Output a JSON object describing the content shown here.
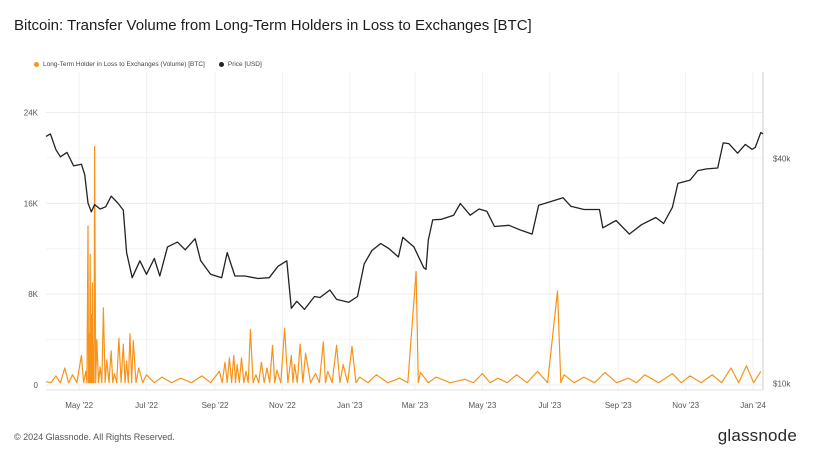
{
  "title": "Bitcoin: Transfer Volume from Long-Term Holders in Loss to Exchanges [BTC]",
  "legend": [
    {
      "label": "Long-Term Holder in Loss to Exchanges (Volume) [BTC]",
      "color": "#f7931a"
    },
    {
      "label": "Price [USD]",
      "color": "#222222"
    }
  ],
  "footer": {
    "copyright": "© 2024 Glassnode. All Rights Reserved.",
    "brand": "glassnode"
  },
  "chart_data": {
    "type": "line",
    "x_range": [
      "2022-04-01",
      "2024-01-10"
    ],
    "x_ticks": [
      {
        "date": "2022-05-01",
        "label": "May '22"
      },
      {
        "date": "2022-07-01",
        "label": "Jul '22"
      },
      {
        "date": "2022-09-01",
        "label": "Sep '22"
      },
      {
        "date": "2022-11-01",
        "label": "Nov '22"
      },
      {
        "date": "2023-01-01",
        "label": "Jan '23"
      },
      {
        "date": "2023-03-01",
        "label": "Mar '23"
      },
      {
        "date": "2023-05-01",
        "label": "May '23"
      },
      {
        "date": "2023-07-01",
        "label": "Jul '23"
      },
      {
        "date": "2023-09-01",
        "label": "Sep '23"
      },
      {
        "date": "2023-11-01",
        "label": "Nov '23"
      },
      {
        "date": "2024-01-01",
        "label": "Jan '24"
      }
    ],
    "y_left": {
      "range": [
        0,
        26000
      ],
      "ticks": [
        {
          "value": 0,
          "label": "0"
        },
        {
          "value": 8000,
          "label": "8K"
        },
        {
          "value": 16000,
          "label": "16K"
        },
        {
          "value": 24000,
          "label": "24K"
        }
      ]
    },
    "y_right": {
      "scale": "log",
      "range": [
        9800,
        64000
      ],
      "ticks": [
        {
          "value": 10000,
          "label": "$10k"
        },
        {
          "value": 40000,
          "label": "$40k"
        }
      ]
    },
    "grid": true,
    "series": [
      {
        "name": "Long-Term Holder in Loss to Exchanges (Volume) [BTC]",
        "axis": "left",
        "color": "#f7931a",
        "baseline": 200,
        "points": [
          [
            "2022-04-01",
            300
          ],
          [
            "2022-04-10",
            800
          ],
          [
            "2022-04-18",
            1500
          ],
          [
            "2022-04-25",
            900
          ],
          [
            "2022-05-03",
            2600
          ],
          [
            "2022-05-07",
            1200
          ],
          [
            "2022-05-09",
            14000
          ],
          [
            "2022-05-10",
            4500
          ],
          [
            "2022-05-11",
            11500
          ],
          [
            "2022-05-12",
            6200
          ],
          [
            "2022-05-13",
            9000
          ],
          [
            "2022-05-14",
            3500
          ],
          [
            "2022-05-15",
            21000
          ],
          [
            "2022-05-17",
            4000
          ],
          [
            "2022-05-20",
            1600
          ],
          [
            "2022-05-23",
            6800
          ],
          [
            "2022-05-26",
            2200
          ],
          [
            "2022-05-30",
            3000
          ],
          [
            "2022-06-02",
            1000
          ],
          [
            "2022-06-06",
            4100
          ],
          [
            "2022-06-10",
            3600
          ],
          [
            "2022-06-13",
            2100
          ],
          [
            "2022-06-16",
            4500
          ],
          [
            "2022-06-19",
            3900
          ],
          [
            "2022-06-24",
            1500
          ],
          [
            "2022-07-01",
            900
          ],
          [
            "2022-07-15",
            700
          ],
          [
            "2022-08-01",
            600
          ],
          [
            "2022-08-20",
            800
          ],
          [
            "2022-09-05",
            1200
          ],
          [
            "2022-09-10",
            2000
          ],
          [
            "2022-09-14",
            2400
          ],
          [
            "2022-09-18",
            2600
          ],
          [
            "2022-09-21",
            1800
          ],
          [
            "2022-09-25",
            2400
          ],
          [
            "2022-09-29",
            1200
          ],
          [
            "2022-10-03",
            4900
          ],
          [
            "2022-10-08",
            900
          ],
          [
            "2022-10-13",
            2000
          ],
          [
            "2022-10-18",
            1500
          ],
          [
            "2022-10-23",
            3500
          ],
          [
            "2022-10-27",
            1300
          ],
          [
            "2022-11-03",
            5000
          ],
          [
            "2022-11-09",
            2600
          ],
          [
            "2022-11-12",
            1800
          ],
          [
            "2022-11-17",
            3600
          ],
          [
            "2022-11-22",
            2800
          ],
          [
            "2022-12-01",
            1000
          ],
          [
            "2022-12-08",
            3800
          ],
          [
            "2022-12-12",
            1200
          ],
          [
            "2022-12-20",
            3500
          ],
          [
            "2022-12-26",
            1800
          ],
          [
            "2023-01-03",
            3400
          ],
          [
            "2023-01-10",
            700
          ],
          [
            "2023-01-25",
            900
          ],
          [
            "2023-02-15",
            600
          ],
          [
            "2023-03-02",
            10000
          ],
          [
            "2023-03-06",
            1100
          ],
          [
            "2023-03-20",
            700
          ],
          [
            "2023-04-15",
            500
          ],
          [
            "2023-05-01",
            1000
          ],
          [
            "2023-05-15",
            600
          ],
          [
            "2023-06-01",
            900
          ],
          [
            "2023-06-20",
            1200
          ],
          [
            "2023-07-08",
            8300
          ],
          [
            "2023-07-14",
            900
          ],
          [
            "2023-08-01",
            700
          ],
          [
            "2023-08-20",
            1100
          ],
          [
            "2023-09-10",
            600
          ],
          [
            "2023-09-25",
            900
          ],
          [
            "2023-10-20",
            1000
          ],
          [
            "2023-11-05",
            800
          ],
          [
            "2023-11-25",
            900
          ],
          [
            "2023-12-12",
            1500
          ],
          [
            "2023-12-26",
            1700
          ],
          [
            "2024-01-08",
            1200
          ]
        ]
      },
      {
        "name": "Price [USD]",
        "axis": "right",
        "color": "#222222",
        "points": [
          [
            "2022-04-01",
            45800
          ],
          [
            "2022-04-05",
            46500
          ],
          [
            "2022-04-10",
            42200
          ],
          [
            "2022-04-14",
            40400
          ],
          [
            "2022-04-20",
            41500
          ],
          [
            "2022-04-26",
            38200
          ],
          [
            "2022-05-03",
            38600
          ],
          [
            "2022-05-06",
            36200
          ],
          [
            "2022-05-09",
            30400
          ],
          [
            "2022-05-12",
            28800
          ],
          [
            "2022-05-15",
            30100
          ],
          [
            "2022-05-20",
            29300
          ],
          [
            "2022-05-25",
            29700
          ],
          [
            "2022-05-30",
            31700
          ],
          [
            "2022-06-05",
            30400
          ],
          [
            "2022-06-10",
            29100
          ],
          [
            "2022-06-13",
            22400
          ],
          [
            "2022-06-18",
            19200
          ],
          [
            "2022-06-25",
            21300
          ],
          [
            "2022-07-01",
            19600
          ],
          [
            "2022-07-08",
            21600
          ],
          [
            "2022-07-13",
            19400
          ],
          [
            "2022-07-20",
            23200
          ],
          [
            "2022-07-29",
            23900
          ],
          [
            "2022-08-05",
            22800
          ],
          [
            "2022-08-14",
            24400
          ],
          [
            "2022-08-19",
            21300
          ],
          [
            "2022-08-28",
            19600
          ],
          [
            "2022-09-07",
            19200
          ],
          [
            "2022-09-12",
            22400
          ],
          [
            "2022-09-19",
            19400
          ],
          [
            "2022-09-28",
            19400
          ],
          [
            "2022-10-10",
            19100
          ],
          [
            "2022-10-20",
            19200
          ],
          [
            "2022-10-28",
            20600
          ],
          [
            "2022-11-05",
            21300
          ],
          [
            "2022-11-09",
            15900
          ],
          [
            "2022-11-14",
            16600
          ],
          [
            "2022-11-21",
            15800
          ],
          [
            "2022-11-30",
            17100
          ],
          [
            "2022-12-05",
            17000
          ],
          [
            "2022-12-14",
            17800
          ],
          [
            "2022-12-20",
            16800
          ],
          [
            "2022-12-31",
            16500
          ],
          [
            "2023-01-08",
            17100
          ],
          [
            "2023-01-14",
            20900
          ],
          [
            "2023-01-21",
            22700
          ],
          [
            "2023-01-29",
            23700
          ],
          [
            "2023-02-05",
            23000
          ],
          [
            "2023-02-14",
            21800
          ],
          [
            "2023-02-18",
            24600
          ],
          [
            "2023-02-28",
            23200
          ],
          [
            "2023-03-09",
            20400
          ],
          [
            "2023-03-11",
            20200
          ],
          [
            "2023-03-13",
            24200
          ],
          [
            "2023-03-17",
            27400
          ],
          [
            "2023-03-25",
            27500
          ],
          [
            "2023-04-05",
            28200
          ],
          [
            "2023-04-11",
            30300
          ],
          [
            "2023-04-20",
            28200
          ],
          [
            "2023-04-28",
            29300
          ],
          [
            "2023-05-05",
            28900
          ],
          [
            "2023-05-12",
            26300
          ],
          [
            "2023-05-25",
            26500
          ],
          [
            "2023-06-05",
            25700
          ],
          [
            "2023-06-15",
            25100
          ],
          [
            "2023-06-21",
            30000
          ],
          [
            "2023-07-01",
            30600
          ],
          [
            "2023-07-13",
            31400
          ],
          [
            "2023-07-20",
            29800
          ],
          [
            "2023-08-01",
            29200
          ],
          [
            "2023-08-15",
            29200
          ],
          [
            "2023-08-18",
            26100
          ],
          [
            "2023-08-30",
            27300
          ],
          [
            "2023-09-11",
            25100
          ],
          [
            "2023-09-22",
            26600
          ],
          [
            "2023-10-05",
            27800
          ],
          [
            "2023-10-12",
            26800
          ],
          [
            "2023-10-20",
            29600
          ],
          [
            "2023-10-25",
            34300
          ],
          [
            "2023-11-05",
            35000
          ],
          [
            "2023-11-12",
            37100
          ],
          [
            "2023-11-20",
            37500
          ],
          [
            "2023-11-30",
            37700
          ],
          [
            "2023-12-05",
            44000
          ],
          [
            "2023-12-10",
            43800
          ],
          [
            "2023-12-18",
            41300
          ],
          [
            "2023-12-25",
            43600
          ],
          [
            "2023-12-31",
            42300
          ],
          [
            "2024-01-03",
            42800
          ],
          [
            "2024-01-08",
            46900
          ],
          [
            "2024-01-10",
            46500
          ]
        ]
      }
    ]
  }
}
